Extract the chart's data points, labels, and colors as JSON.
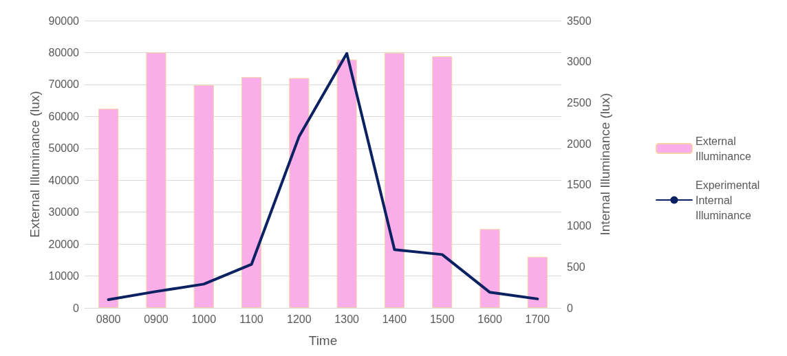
{
  "chart_data": {
    "type": "bar",
    "xlabel": "Time",
    "ylabel": "External Illuminance (lux)",
    "y2label": "Internal Illuminance (lux)",
    "categories": [
      "0800",
      "0900",
      "1000",
      "1100",
      "1200",
      "1300",
      "1400",
      "1500",
      "1600",
      "1700"
    ],
    "series": [
      {
        "name": "External Illuminance",
        "color": "#f9aee9",
        "values": [
          62400,
          80000,
          69800,
          72300,
          72000,
          77800,
          79900,
          78800,
          24700,
          16000
        ]
      },
      {
        "name": "Experimental Internal Illuminance",
        "type": "line",
        "axis": "y2",
        "color": "#0b2161",
        "values": [
          100,
          200,
          290,
          530,
          2090,
          3100,
          710,
          650,
          190,
          110
        ]
      }
    ],
    "ylim": [
      0,
      90000
    ],
    "yticks": [
      0,
      10000,
      20000,
      30000,
      40000,
      50000,
      60000,
      70000,
      80000,
      90000
    ],
    "y2lim": [
      0,
      3500
    ],
    "y2ticks": [
      0,
      500,
      1000,
      1500,
      2000,
      2500,
      3000,
      3500
    ],
    "grid": "y",
    "legend": "right",
    "marker": "none",
    "line_style": "solid"
  }
}
